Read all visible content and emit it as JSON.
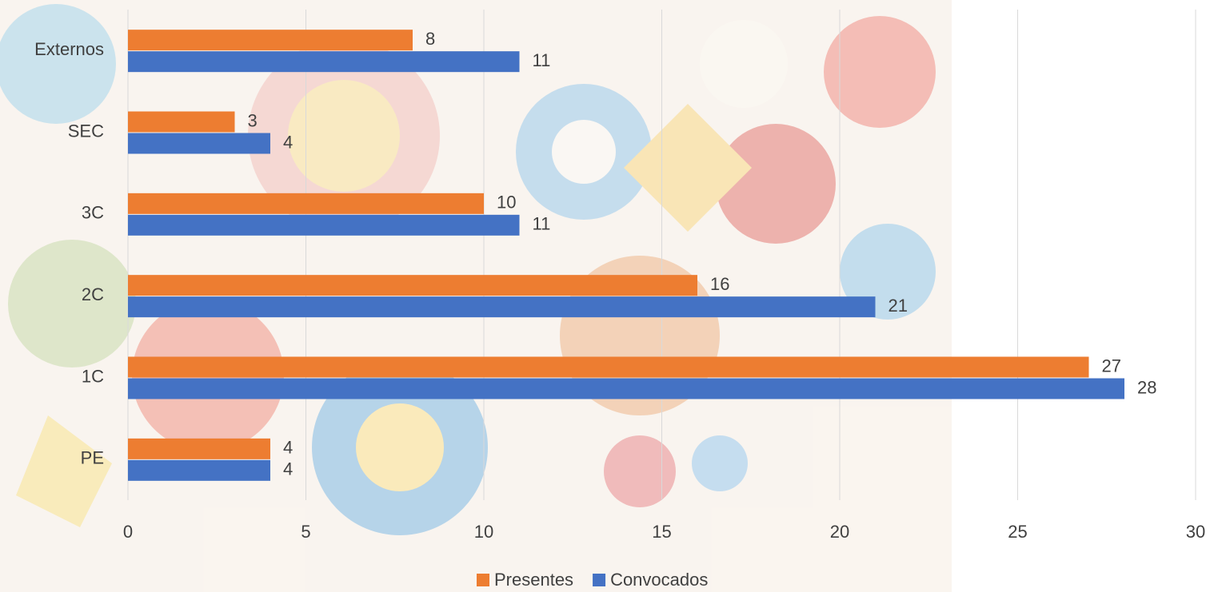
{
  "chart_data": {
    "type": "bar",
    "orientation": "horizontal",
    "categories": [
      "Externos",
      "SEC",
      "3C",
      "2C",
      "1C",
      "PE"
    ],
    "series": [
      {
        "name": "Presentes",
        "color": "#ed7d31",
        "values": [
          8,
          3,
          10,
          16,
          27,
          4
        ]
      },
      {
        "name": "Convocados",
        "color": "#4472c4",
        "values": [
          11,
          4,
          11,
          21,
          28,
          4
        ]
      }
    ],
    "xlim": [
      0,
      30
    ],
    "xticks": [
      0,
      5,
      10,
      15,
      20,
      25,
      30
    ],
    "grid": true,
    "legend": "bottom"
  }
}
